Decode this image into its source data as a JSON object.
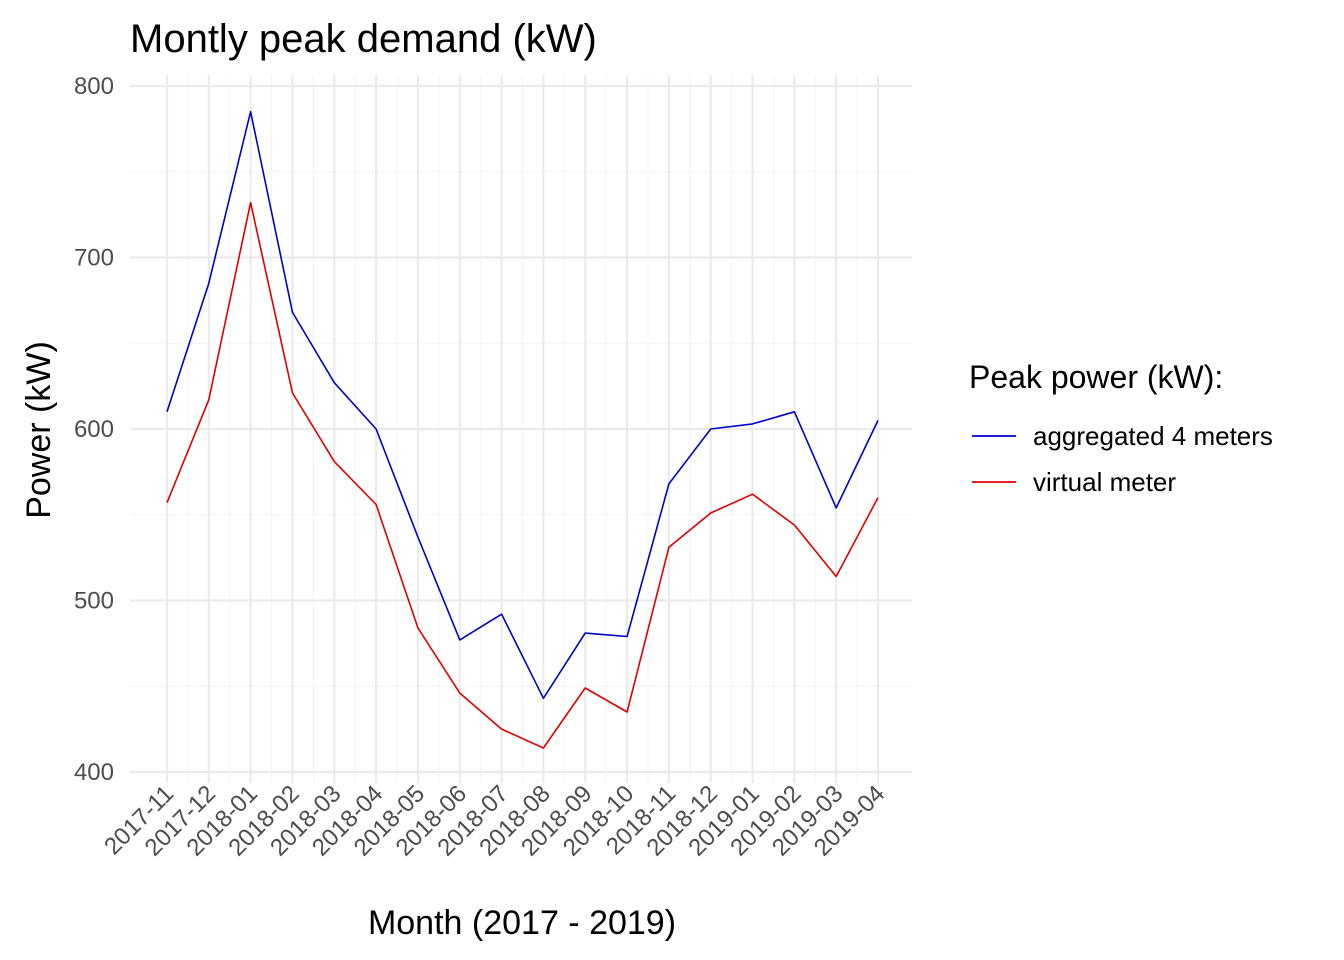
{
  "chart_data": {
    "type": "line",
    "title": "Montly peak demand (kW)",
    "xlabel": "Month (2017 - 2019)",
    "ylabel": "Power (kW)",
    "categories": [
      "2017-11",
      "2017-12",
      "2018-01",
      "2018-02",
      "2018-03",
      "2018-04",
      "2018-05",
      "2018-06",
      "2018-07",
      "2018-08",
      "2018-09",
      "2018-10",
      "2018-11",
      "2018-12",
      "2019-01",
      "2019-02",
      "2019-03",
      "2019-04"
    ],
    "ylim": [
      400,
      800
    ],
    "yticks": [
      "400",
      "500",
      "600",
      "700",
      "800"
    ],
    "grid": true,
    "legend": {
      "title": "Peak power (kW):",
      "position": "right"
    },
    "series": [
      {
        "name": "aggregated 4 meters",
        "color": "#0000cd",
        "values": [
          610,
          685,
          785,
          668,
          627,
          600,
          537,
          477,
          492,
          443,
          481,
          479,
          568,
          600,
          603,
          610,
          554,
          605
        ]
      },
      {
        "name": "virtual meter",
        "color": "#e00000",
        "values": [
          557,
          617,
          732,
          621,
          581,
          556,
          484,
          446,
          425,
          414,
          449,
          435,
          531,
          551,
          562,
          544,
          514,
          560
        ]
      }
    ]
  }
}
